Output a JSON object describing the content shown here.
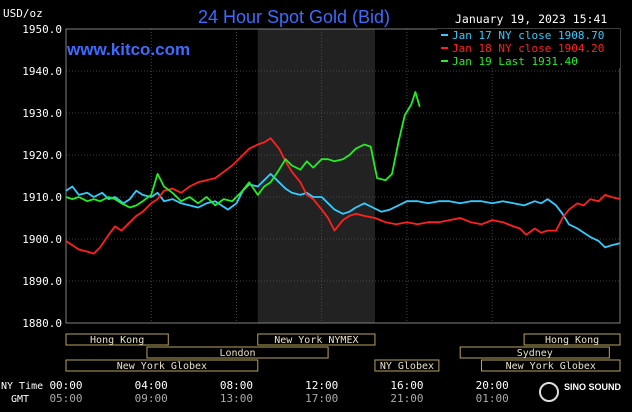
{
  "chart_data": {
    "type": "line",
    "title": "24 Hour Spot Gold (Bid)",
    "website": "www.kitco.com",
    "date_time": "January 19, 2023 15:41",
    "yunit": "USD/oz",
    "ylim": [
      1880,
      1950
    ],
    "y_ticks": [
      "1880.0",
      "1890.0",
      "1900.0",
      "1910.0",
      "1920.0",
      "1930.0",
      "1940.0",
      "1950.0"
    ],
    "x_axis_label_ny": "NY Time",
    "x_axis_label_gmt": "GMT",
    "x_ticks_ny": [
      "00:00",
      "04:00",
      "08:00",
      "12:00",
      "16:00",
      "20:00"
    ],
    "x_ticks_gmt": [
      "05:00",
      "09:00",
      "13:00",
      "17:00",
      "21:00",
      "01:00"
    ],
    "x_tick_hours": [
      0,
      4,
      8,
      12,
      16,
      20
    ],
    "xlim": [
      0,
      26
    ],
    "highlight_hours": [
      9,
      14.5
    ],
    "grid": true,
    "legend_position": "top-right",
    "series": [
      {
        "name": "Jan 17 NY close 1908.70",
        "color": "#33ccff",
        "x": [
          0,
          0.3,
          0.6,
          1.0,
          1.3,
          1.7,
          2.0,
          2.3,
          2.7,
          3.0,
          3.3,
          3.6,
          4.0,
          4.3,
          4.6,
          5.0,
          5.4,
          5.8,
          6.2,
          6.6,
          7.0,
          7.3,
          7.6,
          8.0,
          8.3,
          8.6,
          9.0,
          9.3,
          9.6,
          10.0,
          10.3,
          10.6,
          11.0,
          11.3,
          11.6,
          12.0,
          12.3,
          12.6,
          13.0,
          13.3,
          13.6,
          14.0,
          14.4,
          14.8,
          15.2,
          15.6,
          16.0,
          16.5,
          17.0,
          17.5,
          18.0,
          18.5,
          19.0,
          19.5,
          20.0,
          20.5,
          21.0,
          21.5,
          22.0,
          22.3,
          22.6,
          23.0,
          23.3,
          23.6,
          24.0,
          24.3,
          24.6,
          25.0,
          25.3,
          25.6,
          26.0
        ],
        "values": [
          1911.5,
          1912.5,
          1910.5,
          1911.0,
          1910.0,
          1911.0,
          1909.5,
          1910.0,
          1908.5,
          1909.5,
          1911.5,
          1910.5,
          1910.0,
          1911.0,
          1909.0,
          1909.5,
          1908.5,
          1908.0,
          1907.5,
          1908.5,
          1909.0,
          1908.0,
          1907.0,
          1908.5,
          1911.5,
          1913.0,
          1912.5,
          1914.0,
          1915.5,
          1913.5,
          1912.0,
          1911.0,
          1910.5,
          1911.0,
          1910.0,
          1910.0,
          1908.5,
          1907.0,
          1906.0,
          1906.5,
          1907.5,
          1908.5,
          1907.5,
          1906.5,
          1907.0,
          1908.0,
          1909.0,
          1909.0,
          1908.5,
          1909.0,
          1909.0,
          1908.5,
          1909.0,
          1909.0,
          1908.5,
          1909.0,
          1908.5,
          1908.0,
          1909.0,
          1908.5,
          1909.5,
          1908.0,
          1906.0,
          1903.5,
          1902.5,
          1901.5,
          1900.5,
          1899.5,
          1898.0,
          1898.5,
          1899.0
        ]
      },
      {
        "name": "Jan 18 NY close 1904.20",
        "color": "#ff2020",
        "x": [
          0,
          0.3,
          0.6,
          1.0,
          1.3,
          1.6,
          2.0,
          2.3,
          2.6,
          3.0,
          3.3,
          3.6,
          4.0,
          4.3,
          4.6,
          5.0,
          5.4,
          5.8,
          6.2,
          6.6,
          7.0,
          7.4,
          7.8,
          8.2,
          8.6,
          9.0,
          9.3,
          9.6,
          10.0,
          10.3,
          10.6,
          11.0,
          11.3,
          11.6,
          12.0,
          12.3,
          12.6,
          13.0,
          13.3,
          13.6,
          14.0,
          14.5,
          15.0,
          15.5,
          16.0,
          16.5,
          17.0,
          17.5,
          18.0,
          18.5,
          19.0,
          19.5,
          20.0,
          20.5,
          21.0,
          21.3,
          21.6,
          22.0,
          22.3,
          22.6,
          23.0,
          23.3,
          23.6,
          24.0,
          24.3,
          24.6,
          25.0,
          25.3,
          25.6,
          26.0
        ],
        "values": [
          1899.5,
          1898.5,
          1897.5,
          1897.0,
          1896.5,
          1898.0,
          1901.0,
          1903.0,
          1902.0,
          1904.0,
          1905.5,
          1906.5,
          1908.5,
          1909.5,
          1911.5,
          1912.0,
          1911.0,
          1912.5,
          1913.5,
          1914.0,
          1914.5,
          1916.0,
          1917.5,
          1919.5,
          1921.5,
          1922.5,
          1923.0,
          1924.0,
          1921.5,
          1918.5,
          1916.0,
          1913.5,
          1910.5,
          1909.5,
          1907.0,
          1905.0,
          1902.0,
          1904.5,
          1905.5,
          1906.0,
          1905.5,
          1905.0,
          1904.0,
          1903.5,
          1904.0,
          1903.5,
          1904.0,
          1904.0,
          1904.5,
          1905.0,
          1904.0,
          1903.5,
          1904.5,
          1904.0,
          1903.0,
          1902.5,
          1901.0,
          1902.5,
          1901.5,
          1902.0,
          1902.0,
          1905.0,
          1907.0,
          1908.5,
          1908.0,
          1909.5,
          1909.0,
          1910.5,
          1910.0,
          1909.5
        ]
      },
      {
        "name": "Jan 19 Last 1931.40",
        "color": "#22ee22",
        "x": [
          0,
          0.3,
          0.6,
          1.0,
          1.3,
          1.6,
          2.0,
          2.3,
          2.6,
          3.0,
          3.3,
          3.6,
          4.0,
          4.3,
          4.6,
          5.0,
          5.4,
          5.8,
          6.2,
          6.6,
          7.0,
          7.4,
          7.8,
          8.2,
          8.6,
          9.0,
          9.3,
          9.6,
          10.0,
          10.3,
          10.6,
          11.0,
          11.3,
          11.6,
          12.0,
          12.3,
          12.6,
          13.0,
          13.3,
          13.6,
          14.0,
          14.3,
          14.6,
          15.0,
          15.3,
          15.6,
          15.9,
          16.2,
          16.4,
          16.6
        ],
        "values": [
          1910.0,
          1909.5,
          1910.0,
          1909.0,
          1909.5,
          1909.0,
          1910.0,
          1909.5,
          1908.5,
          1907.5,
          1908.0,
          1909.0,
          1910.5,
          1915.5,
          1912.5,
          1911.0,
          1909.0,
          1910.0,
          1908.5,
          1910.0,
          1908.0,
          1909.5,
          1909.0,
          1911.0,
          1913.5,
          1910.5,
          1912.5,
          1913.5,
          1916.5,
          1919.0,
          1917.5,
          1916.5,
          1918.5,
          1917.0,
          1919.0,
          1919.0,
          1918.5,
          1919.0,
          1920.0,
          1921.5,
          1922.5,
          1922.0,
          1914.5,
          1914.0,
          1915.5,
          1923.0,
          1929.5,
          1932.0,
          1935.0,
          1931.5
        ]
      }
    ],
    "sessions": [
      {
        "name": "Hong Kong",
        "start": 0,
        "end": 4.8
      },
      {
        "name": "London",
        "start": 3.8,
        "end": 12.3
      },
      {
        "name": "New York Globex",
        "start": 0,
        "end": 9.0
      },
      {
        "name": "New York NYMEX",
        "start": 9.0,
        "end": 14.5
      },
      {
        "name": "NY Globex",
        "start": 14.5,
        "end": 17.5
      },
      {
        "name": "Hong Kong",
        "start": 21.5,
        "end": 26.0
      },
      {
        "name": "Sydney",
        "start": 18.5,
        "end": 25.5
      },
      {
        "name": "New York Globex",
        "start": 19.5,
        "end": 26.0
      }
    ],
    "watermark": "SINO SOUND"
  }
}
